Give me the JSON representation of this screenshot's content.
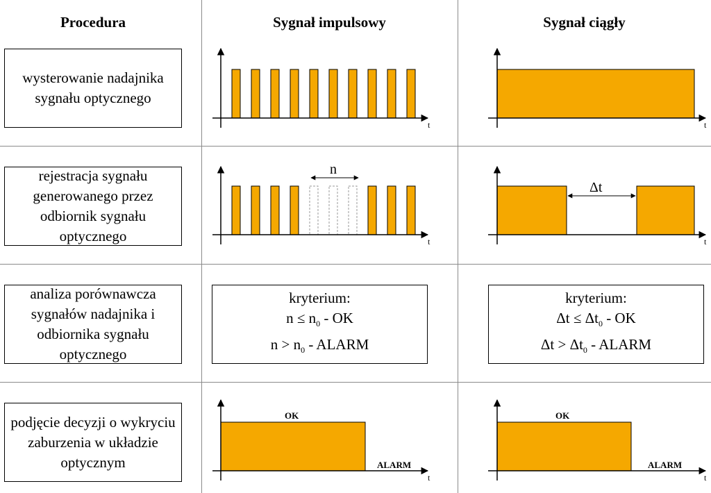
{
  "headers": {
    "procedure": "Procedura",
    "pulse": "Sygnał impulsowy",
    "continuous": "Sygnał ciągły"
  },
  "procedures": [
    "wysterowanie nadajnika sygnału optycznego",
    "rejestracja sygnału generowanego przez odbiornik sygnału optycznego",
    "analiza porównawcza sygnałów nadajnika i odbiornika sygnału optycznego",
    "podjęcie decyzji o wykryciu zaburzenia w układzie optycznym"
  ],
  "axis_label": "t",
  "pulse_gap_label": "n",
  "cont_gap_label": "Δt",
  "criteria": {
    "title": "kryterium:",
    "pulse": {
      "ok_lhs": "n ≤ n",
      "ok_sub": "0",
      "ok_rhs": " - OK",
      "alarm_lhs": "n > n",
      "alarm_sub": "0",
      "alarm_rhs": " - ALARM"
    },
    "continuous": {
      "ok_lhs": "Δt ≤ Δt",
      "ok_sub": "0",
      "ok_rhs": " - OK",
      "alarm_lhs": "Δt > Δt",
      "alarm_sub": "0",
      "alarm_rhs": " - ALARM"
    }
  },
  "decision": {
    "ok": "OK",
    "alarm": "ALARM"
  },
  "colors": {
    "fill": "#F5A800",
    "grid": "#8a8a8a"
  }
}
